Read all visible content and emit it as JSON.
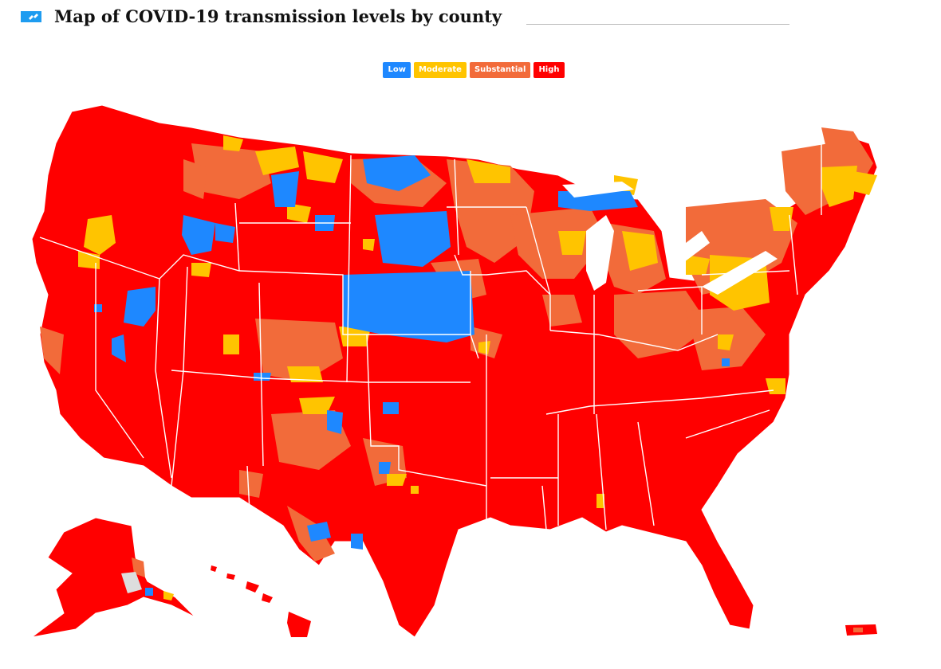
{
  "header": {
    "title": "Map of COVID-19 transmission levels by county",
    "icon": "flag-icon"
  },
  "legend": {
    "items": [
      {
        "label": "Low",
        "color": "#1e88ff"
      },
      {
        "label": "Moderate",
        "color": "#ffc400"
      },
      {
        "label": "Substantial",
        "color": "#f26b3a"
      },
      {
        "label": "High",
        "color": "#ff0000"
      }
    ]
  },
  "map": {
    "region": "United States",
    "levels_shown": [
      "Low",
      "Moderate",
      "Substantial",
      "High"
    ],
    "dominant_level": "High",
    "colors": {
      "low": "#1e88ff",
      "moderate": "#ffc400",
      "substantial": "#f26b3a",
      "high": "#ff0000",
      "no_data": "#dddddd",
      "border": "#ffffff"
    }
  }
}
